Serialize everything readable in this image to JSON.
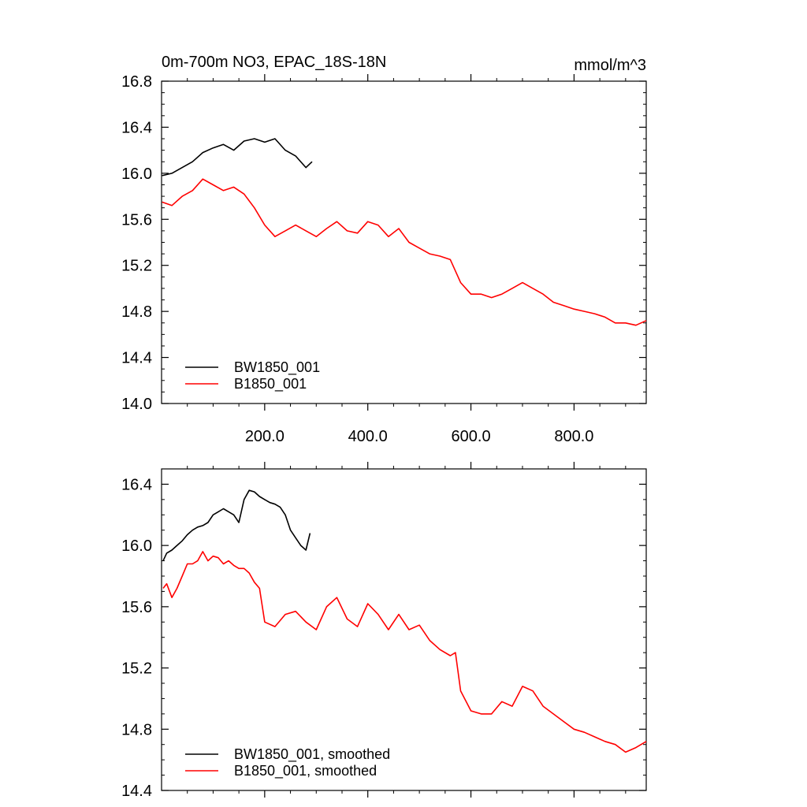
{
  "chart_data": [
    {
      "type": "line",
      "title": "0m-700m NO3, EPAC_18S-18N",
      "units": "mmol/m^3",
      "xlim": [
        0,
        940
      ],
      "ylim": [
        14.0,
        16.8
      ],
      "x_ticks": [
        200,
        400,
        600,
        800
      ],
      "x_tick_labels": [
        "200.0",
        "400.0",
        "600.0",
        "800.0"
      ],
      "y_ticks": [
        14.0,
        14.4,
        14.8,
        15.2,
        15.6,
        16.0,
        16.4,
        16.8
      ],
      "y_tick_labels": [
        "14.0",
        "14.4",
        "14.8",
        "15.2",
        "15.6",
        "16.0",
        "16.4",
        "16.8"
      ],
      "legend_position": "bottom-left",
      "series": [
        {
          "name": "BW1850_001",
          "color": "#000000",
          "x": [
            1,
            20,
            40,
            60,
            80,
            100,
            120,
            140,
            160,
            180,
            200,
            220,
            240,
            260,
            280,
            292
          ],
          "values": [
            15.98,
            16.0,
            16.05,
            16.1,
            16.18,
            16.22,
            16.25,
            16.2,
            16.28,
            16.3,
            16.27,
            16.3,
            16.2,
            16.15,
            16.05,
            16.1
          ]
        },
        {
          "name": "B1850_001",
          "color": "#ff0000",
          "x": [
            1,
            20,
            40,
            60,
            80,
            100,
            120,
            140,
            160,
            180,
            200,
            220,
            240,
            260,
            280,
            300,
            320,
            340,
            360,
            380,
            400,
            420,
            440,
            460,
            480,
            500,
            520,
            540,
            560,
            580,
            600,
            620,
            640,
            660,
            680,
            700,
            720,
            740,
            760,
            780,
            800,
            820,
            840,
            860,
            880,
            900,
            920,
            940
          ],
          "values": [
            15.75,
            15.72,
            15.8,
            15.85,
            15.95,
            15.9,
            15.85,
            15.88,
            15.82,
            15.7,
            15.55,
            15.45,
            15.5,
            15.55,
            15.5,
            15.45,
            15.52,
            15.58,
            15.5,
            15.48,
            15.58,
            15.55,
            15.45,
            15.52,
            15.4,
            15.35,
            15.3,
            15.28,
            15.25,
            15.05,
            14.95,
            14.95,
            14.92,
            14.95,
            15.0,
            15.05,
            15.0,
            14.95,
            14.88,
            14.85,
            14.82,
            14.8,
            14.78,
            14.75,
            14.7,
            14.7,
            14.68,
            14.72
          ]
        }
      ]
    },
    {
      "type": "line",
      "title": "",
      "units": "",
      "xlim": [
        0,
        940
      ],
      "ylim": [
        14.4,
        16.5
      ],
      "x_ticks": [
        200,
        400,
        600,
        800
      ],
      "x_tick_labels": [],
      "y_ticks": [
        14.4,
        14.8,
        15.2,
        15.6,
        16.0,
        16.4
      ],
      "y_tick_labels": [
        "14.4",
        "14.8",
        "15.2",
        "15.6",
        "16.0",
        "16.4"
      ],
      "legend_position": "bottom-left",
      "series": [
        {
          "name": "BW1850_001, smoothed",
          "color": "#000000",
          "x": [
            3,
            10,
            20,
            30,
            40,
            50,
            60,
            70,
            80,
            90,
            100,
            110,
            120,
            130,
            140,
            150,
            160,
            170,
            180,
            190,
            200,
            210,
            220,
            230,
            240,
            250,
            260,
            270,
            280,
            288
          ],
          "values": [
            15.9,
            15.95,
            15.97,
            16.0,
            16.03,
            16.07,
            16.1,
            16.12,
            16.13,
            16.15,
            16.2,
            16.22,
            16.24,
            16.22,
            16.2,
            16.15,
            16.3,
            16.36,
            16.35,
            16.32,
            16.3,
            16.28,
            16.27,
            16.25,
            16.2,
            16.1,
            16.05,
            16.0,
            15.97,
            16.08
          ]
        },
        {
          "name": "B1850_001, smoothed",
          "color": "#ff0000",
          "x": [
            3,
            10,
            20,
            30,
            40,
            50,
            60,
            70,
            80,
            90,
            100,
            110,
            120,
            130,
            140,
            150,
            160,
            170,
            180,
            190,
            200,
            220,
            240,
            260,
            280,
            300,
            320,
            340,
            360,
            380,
            400,
            420,
            440,
            460,
            480,
            500,
            520,
            540,
            560,
            570,
            580,
            600,
            620,
            640,
            660,
            680,
            700,
            720,
            740,
            760,
            780,
            800,
            820,
            840,
            860,
            880,
            900,
            920,
            940
          ],
          "values": [
            15.72,
            15.75,
            15.66,
            15.72,
            15.8,
            15.88,
            15.88,
            15.9,
            15.96,
            15.9,
            15.93,
            15.92,
            15.88,
            15.9,
            15.87,
            15.85,
            15.85,
            15.82,
            15.76,
            15.72,
            15.5,
            15.47,
            15.55,
            15.57,
            15.5,
            15.45,
            15.6,
            15.66,
            15.52,
            15.47,
            15.62,
            15.55,
            15.45,
            15.55,
            15.45,
            15.48,
            15.38,
            15.32,
            15.28,
            15.3,
            15.05,
            14.92,
            14.9,
            14.9,
            14.98,
            14.95,
            15.08,
            15.05,
            14.95,
            14.9,
            14.85,
            14.8,
            14.78,
            14.75,
            14.72,
            14.7,
            14.65,
            14.68,
            14.72
          ]
        }
      ]
    }
  ]
}
